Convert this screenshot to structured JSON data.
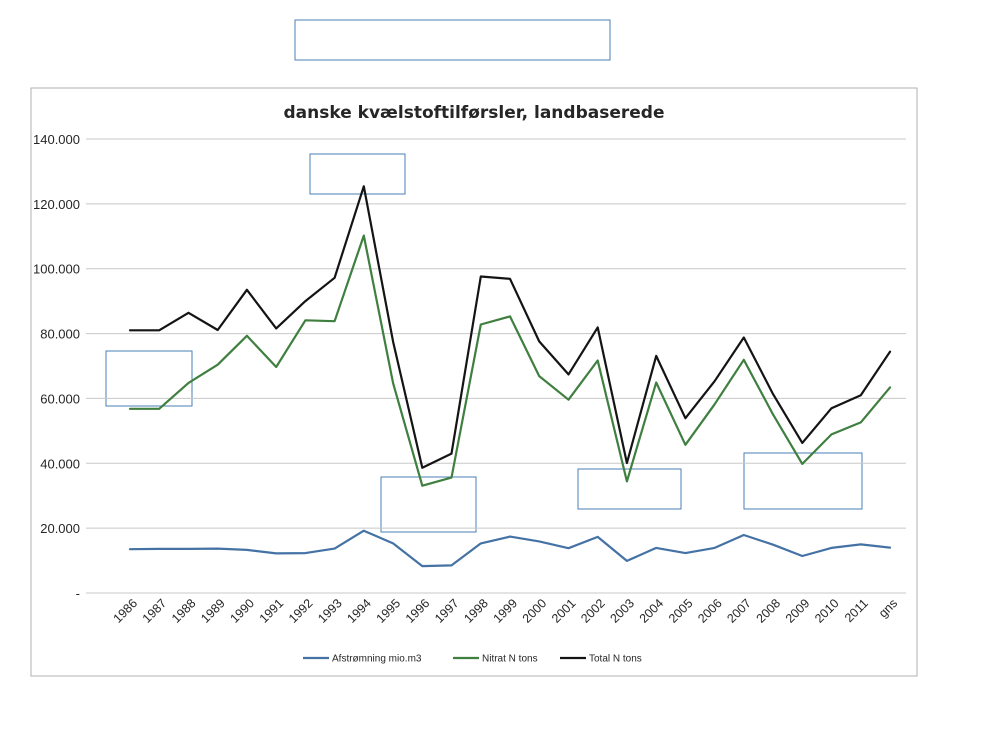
{
  "chart_data": {
    "type": "line",
    "title": "danske kvælstoftilførsler, landbaserede",
    "xlabel": "",
    "ylabel": "",
    "ylim": [
      0,
      140000
    ],
    "y_ticks": [
      "-",
      "20.000",
      "40.000",
      "60.000",
      "80.000",
      "100.000",
      "120.000",
      "140.000"
    ],
    "categories": [
      "1986",
      "1987",
      "1988",
      "1989",
      "1990",
      "1991",
      "1992",
      "1993",
      "1994",
      "1995",
      "1996",
      "1997",
      "1998",
      "1999",
      "2000",
      "2001",
      "2002",
      "2003",
      "2004",
      "2005",
      "2006",
      "2007",
      "2008",
      "2009",
      "2010",
      "2011",
      "gns"
    ],
    "grid": true,
    "legend_position": "bottom",
    "series": [
      {
        "name": "Afstrømning mio.m3",
        "color": "#4472a4",
        "values": [
          13500,
          13600,
          13600,
          13700,
          13300,
          12200,
          12300,
          13700,
          19200,
          15300,
          8300,
          8500,
          15300,
          17400,
          15900,
          13800,
          17300,
          9900,
          13900,
          12300,
          13900,
          17900,
          14900,
          11400,
          13900,
          15000,
          14000
        ]
      },
      {
        "name": "Nitrat N tons",
        "color": "#3f7f3f",
        "values": [
          56800,
          56800,
          64800,
          70400,
          79300,
          69700,
          84100,
          83800,
          110200,
          64700,
          33100,
          35600,
          82800,
          85300,
          66900,
          59600,
          71700,
          34400,
          64900,
          45700,
          58200,
          71900,
          55000,
          39800,
          48900,
          52600,
          63400
        ]
      },
      {
        "name": "Total N tons",
        "color": "#141414",
        "values": [
          81000,
          81000,
          86400,
          81100,
          93500,
          81600,
          90000,
          97200,
          125400,
          77500,
          38600,
          43000,
          97600,
          96900,
          77600,
          67400,
          81900,
          40100,
          73100,
          53900,
          65300,
          78800,
          61300,
          46300,
          57000,
          61000,
          74400
        ]
      }
    ]
  }
}
